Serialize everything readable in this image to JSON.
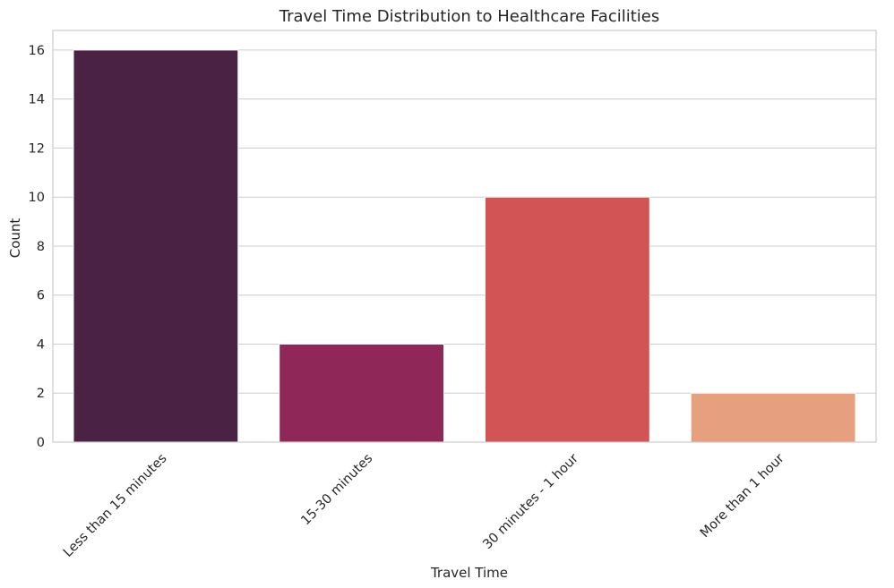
{
  "chart_data": {
    "type": "bar",
    "title": "Travel Time Distribution to Healthcare Facilities",
    "xlabel": "Travel Time",
    "ylabel": "Count",
    "categories": [
      "Less than 15 minutes",
      "15-30 minutes",
      "30 minutes - 1 hour",
      "More than 1 hour"
    ],
    "values": [
      16,
      4,
      10,
      2
    ],
    "colors": [
      "#4a2344",
      "#8f2758",
      "#d35454",
      "#e6a07f"
    ],
    "ylim": [
      0,
      16.8
    ],
    "yticks": [
      0,
      2,
      4,
      6,
      8,
      10,
      12,
      14,
      16
    ],
    "grid": true,
    "legend": "none"
  }
}
